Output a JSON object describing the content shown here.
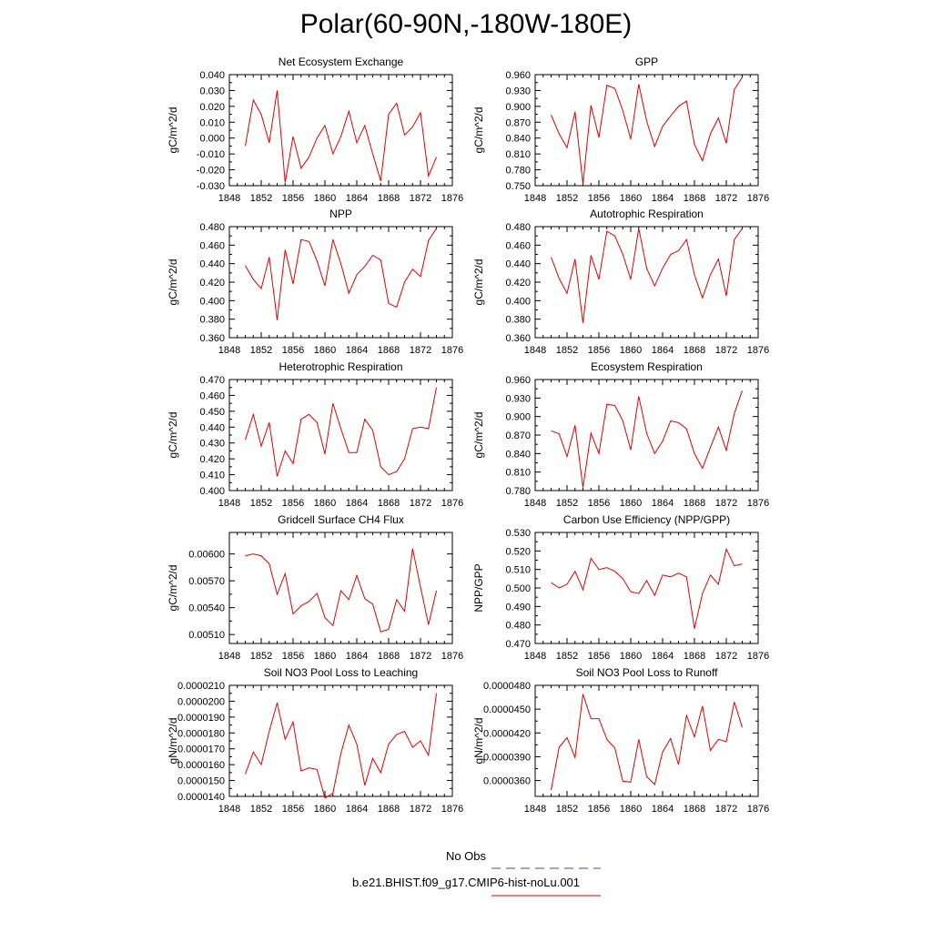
{
  "title": "Polar(60-90N,-180W-180E)",
  "legend": {
    "obs_label": "No Obs",
    "obs_color": "#4a4ad6",
    "case_label": "b.e21.BHIST.f09_g17.CMIP6-hist-noLu.001",
    "case_color": "#e00000"
  },
  "chart_data": [
    {
      "type": "line",
      "title": "Net Ecosystem Exchange",
      "ylabel": "gC/m^2/d",
      "xlim": [
        1848,
        1876
      ],
      "xticks": [
        "1848",
        "1852",
        "1856",
        "1860",
        "1864",
        "1868",
        "1872",
        "1876"
      ],
      "ylim": [
        -0.03,
        0.04
      ],
      "yticks": [
        "0.040",
        "0.030",
        "0.020",
        "0.010",
        "0.000",
        "-0.010",
        "-0.020",
        "-0.030"
      ],
      "ytick_values": [
        0.04,
        0.03,
        0.02,
        0.01,
        0.0,
        -0.01,
        -0.02,
        -0.03
      ],
      "x": [
        1850,
        1851,
        1852,
        1853,
        1854,
        1855,
        1856,
        1857,
        1858,
        1859,
        1860,
        1861,
        1862,
        1863,
        1864,
        1865,
        1866,
        1867,
        1868,
        1869,
        1870,
        1871,
        1872,
        1873,
        1874
      ],
      "values": [
        -0.005,
        0.024,
        0.015,
        -0.003,
        0.03,
        -0.028,
        0.001,
        -0.019,
        -0.012,
        0.0,
        0.008,
        -0.01,
        0.001,
        0.017,
        -0.003,
        0.008,
        -0.01,
        -0.027,
        0.015,
        0.022,
        0.002,
        0.007,
        0.016,
        -0.024,
        -0.012
      ]
    },
    {
      "type": "line",
      "title": "GPP",
      "ylabel": "gC/m^2/d",
      "xlim": [
        1848,
        1876
      ],
      "xticks": [
        "1848",
        "1852",
        "1856",
        "1860",
        "1864",
        "1868",
        "1872",
        "1876"
      ],
      "ylim": [
        0.75,
        0.96
      ],
      "yticks": [
        "0.960",
        "0.930",
        "0.900",
        "0.870",
        "0.840",
        "0.810",
        "0.780",
        "0.750"
      ],
      "ytick_values": [
        0.96,
        0.93,
        0.9,
        0.87,
        0.84,
        0.81,
        0.78,
        0.75
      ],
      "x": [
        1850,
        1851,
        1852,
        1853,
        1854,
        1855,
        1856,
        1857,
        1858,
        1859,
        1860,
        1861,
        1862,
        1863,
        1864,
        1865,
        1866,
        1867,
        1868,
        1869,
        1870,
        1871,
        1872,
        1873,
        1874
      ],
      "values": [
        0.884,
        0.848,
        0.822,
        0.89,
        0.753,
        0.902,
        0.841,
        0.94,
        0.934,
        0.892,
        0.838,
        0.942,
        0.872,
        0.824,
        0.862,
        0.882,
        0.9,
        0.91,
        0.828,
        0.797,
        0.848,
        0.878,
        0.83,
        0.932,
        0.955
      ]
    },
    {
      "type": "line",
      "title": "NPP",
      "ylabel": "gC/m^2/d",
      "xlim": [
        1848,
        1876
      ],
      "xticks": [
        "1848",
        "1852",
        "1856",
        "1860",
        "1864",
        "1868",
        "1872",
        "1876"
      ],
      "ylim": [
        0.36,
        0.48
      ],
      "yticks": [
        "0.480",
        "0.460",
        "0.440",
        "0.420",
        "0.400",
        "0.380",
        "0.360"
      ],
      "ytick_values": [
        0.48,
        0.46,
        0.44,
        0.42,
        0.4,
        0.38,
        0.36
      ],
      "x": [
        1850,
        1851,
        1852,
        1853,
        1854,
        1855,
        1856,
        1857,
        1858,
        1859,
        1860,
        1861,
        1862,
        1863,
        1864,
        1865,
        1866,
        1867,
        1868,
        1869,
        1870,
        1871,
        1872,
        1873,
        1874
      ],
      "values": [
        0.438,
        0.423,
        0.413,
        0.447,
        0.379,
        0.455,
        0.418,
        0.466,
        0.464,
        0.443,
        0.416,
        0.466,
        0.44,
        0.408,
        0.428,
        0.437,
        0.449,
        0.444,
        0.397,
        0.393,
        0.42,
        0.434,
        0.426,
        0.465,
        0.478
      ]
    },
    {
      "type": "line",
      "title": "Autotrophic Respiration",
      "ylabel": "gC/m^2/d",
      "xlim": [
        1848,
        1876
      ],
      "xticks": [
        "1848",
        "1852",
        "1856",
        "1860",
        "1864",
        "1868",
        "1872",
        "1876"
      ],
      "ylim": [
        0.36,
        0.48
      ],
      "yticks": [
        "0.480",
        "0.460",
        "0.440",
        "0.420",
        "0.400",
        "0.380",
        "0.360"
      ],
      "ytick_values": [
        0.48,
        0.46,
        0.44,
        0.42,
        0.4,
        0.38,
        0.36
      ],
      "x": [
        1850,
        1851,
        1852,
        1853,
        1854,
        1855,
        1856,
        1857,
        1858,
        1859,
        1860,
        1861,
        1862,
        1863,
        1864,
        1865,
        1866,
        1867,
        1868,
        1869,
        1870,
        1871,
        1872,
        1873,
        1874
      ],
      "values": [
        0.447,
        0.424,
        0.408,
        0.445,
        0.376,
        0.449,
        0.423,
        0.475,
        0.47,
        0.45,
        0.423,
        0.478,
        0.435,
        0.416,
        0.435,
        0.45,
        0.454,
        0.466,
        0.428,
        0.403,
        0.428,
        0.445,
        0.405,
        0.466,
        0.478
      ]
    },
    {
      "type": "line",
      "title": "Heterotrophic Respiration",
      "ylabel": "gC/m^2/d",
      "xlim": [
        1848,
        1876
      ],
      "xticks": [
        "1848",
        "1852",
        "1856",
        "1860",
        "1864",
        "1868",
        "1872",
        "1876"
      ],
      "ylim": [
        0.4,
        0.47
      ],
      "yticks": [
        "0.470",
        "0.460",
        "0.450",
        "0.440",
        "0.430",
        "0.420",
        "0.410",
        "0.400"
      ],
      "ytick_values": [
        0.47,
        0.46,
        0.45,
        0.44,
        0.43,
        0.42,
        0.41,
        0.4
      ],
      "x": [
        1850,
        1851,
        1852,
        1853,
        1854,
        1855,
        1856,
        1857,
        1858,
        1859,
        1860,
        1861,
        1862,
        1863,
        1864,
        1865,
        1866,
        1867,
        1868,
        1869,
        1870,
        1871,
        1872,
        1873,
        1874
      ],
      "values": [
        0.432,
        0.448,
        0.428,
        0.443,
        0.409,
        0.425,
        0.417,
        0.445,
        0.448,
        0.443,
        0.423,
        0.455,
        0.439,
        0.424,
        0.424,
        0.445,
        0.438,
        0.415,
        0.41,
        0.412,
        0.42,
        0.439,
        0.44,
        0.439,
        0.465
      ]
    },
    {
      "type": "line",
      "title": "Ecosystem Respiration",
      "ylabel": "gC/m^2/d",
      "xlim": [
        1848,
        1876
      ],
      "xticks": [
        "1848",
        "1852",
        "1856",
        "1860",
        "1864",
        "1868",
        "1872",
        "1876"
      ],
      "ylim": [
        0.78,
        0.96
      ],
      "yticks": [
        "0.960",
        "0.930",
        "0.900",
        "0.870",
        "0.840",
        "0.810",
        "0.780"
      ],
      "ytick_values": [
        0.96,
        0.93,
        0.9,
        0.87,
        0.84,
        0.81,
        0.78
      ],
      "x": [
        1850,
        1851,
        1852,
        1853,
        1854,
        1855,
        1856,
        1857,
        1858,
        1859,
        1860,
        1861,
        1862,
        1863,
        1864,
        1865,
        1866,
        1867,
        1868,
        1869,
        1870,
        1871,
        1872,
        1873,
        1874
      ],
      "values": [
        0.877,
        0.872,
        0.835,
        0.886,
        0.785,
        0.873,
        0.84,
        0.92,
        0.918,
        0.893,
        0.846,
        0.933,
        0.873,
        0.84,
        0.86,
        0.893,
        0.89,
        0.88,
        0.84,
        0.816,
        0.85,
        0.883,
        0.845,
        0.905,
        0.942
      ]
    },
    {
      "type": "line",
      "title": "Gridcell Surface CH4 Flux",
      "ylabel": "gC/m^2/d",
      "xlim": [
        1848,
        1876
      ],
      "xticks": [
        "1848",
        "1852",
        "1856",
        "1860",
        "1864",
        "1868",
        "1872",
        "1876"
      ],
      "ylim": [
        0.005,
        0.00624
      ],
      "yticks": [
        "0.00600",
        "0.00570",
        "0.00540",
        "0.00510"
      ],
      "ytick_values": [
        0.006,
        0.0057,
        0.0054,
        0.0051
      ],
      "x": [
        1850,
        1851,
        1852,
        1853,
        1854,
        1855,
        1856,
        1857,
        1858,
        1859,
        1860,
        1861,
        1862,
        1863,
        1864,
        1865,
        1866,
        1867,
        1868,
        1869,
        1870,
        1871,
        1872,
        1873,
        1874
      ],
      "values": [
        0.00598,
        0.006,
        0.00598,
        0.00589,
        0.00555,
        0.00578,
        0.00533,
        0.00542,
        0.00547,
        0.00556,
        0.00529,
        0.0052,
        0.00559,
        0.00549,
        0.00576,
        0.0055,
        0.00544,
        0.00513,
        0.00516,
        0.00549,
        0.00536,
        0.00606,
        0.00563,
        0.00521,
        0.00559
      ]
    },
    {
      "type": "line",
      "title": "Carbon Use Efficiency (NPP/GPP)",
      "ylabel": "NPP/GPP",
      "xlim": [
        1848,
        1876
      ],
      "xticks": [
        "1848",
        "1852",
        "1856",
        "1860",
        "1864",
        "1868",
        "1872",
        "1876"
      ],
      "ylim": [
        0.47,
        0.53
      ],
      "yticks": [
        "0.530",
        "0.520",
        "0.510",
        "0.500",
        "0.490",
        "0.480",
        "0.470"
      ],
      "ytick_values": [
        0.53,
        0.52,
        0.51,
        0.5,
        0.49,
        0.48,
        0.47
      ],
      "x": [
        1850,
        1851,
        1852,
        1853,
        1854,
        1855,
        1856,
        1857,
        1858,
        1859,
        1860,
        1861,
        1862,
        1863,
        1864,
        1865,
        1866,
        1867,
        1868,
        1869,
        1870,
        1871,
        1872,
        1873,
        1874
      ],
      "values": [
        0.503,
        0.5,
        0.502,
        0.509,
        0.499,
        0.516,
        0.51,
        0.511,
        0.509,
        0.505,
        0.498,
        0.497,
        0.504,
        0.496,
        0.507,
        0.506,
        0.508,
        0.506,
        0.478,
        0.497,
        0.507,
        0.502,
        0.521,
        0.512,
        0.513
      ]
    },
    {
      "type": "line",
      "title": "Soil NO3 Pool Loss to Leaching",
      "ylabel": "gN/m^2/d",
      "xlim": [
        1848,
        1876
      ],
      "xticks": [
        "1848",
        "1852",
        "1856",
        "1860",
        "1864",
        "1868",
        "1872",
        "1876"
      ],
      "ylim": [
        1.4e-05,
        2.1e-05
      ],
      "yticks": [
        "0.0000210",
        "0.0000200",
        "0.0000190",
        "0.0000180",
        "0.0000170",
        "0.0000160",
        "0.0000150",
        "0.0000140"
      ],
      "ytick_values": [
        2.1e-05,
        2e-05,
        1.9e-05,
        1.8e-05,
        1.7e-05,
        1.6e-05,
        1.5e-05,
        1.4e-05
      ],
      "x": [
        1850,
        1851,
        1852,
        1853,
        1854,
        1855,
        1856,
        1857,
        1858,
        1859,
        1860,
        1861,
        1862,
        1863,
        1864,
        1865,
        1866,
        1867,
        1868,
        1869,
        1870,
        1871,
        1872,
        1873,
        1874
      ],
      "values": [
        1.54e-05,
        1.68e-05,
        1.6e-05,
        1.81e-05,
        1.99e-05,
        1.76e-05,
        1.87e-05,
        1.56e-05,
        1.58e-05,
        1.57e-05,
        1.39e-05,
        1.42e-05,
        1.67e-05,
        1.85e-05,
        1.73e-05,
        1.47e-05,
        1.64e-05,
        1.55e-05,
        1.73e-05,
        1.79e-05,
        1.81e-05,
        1.71e-05,
        1.75e-05,
        1.66e-05,
        2.05e-05
      ]
    },
    {
      "type": "line",
      "title": "Soil NO3 Pool Loss to Runoff",
      "ylabel": "gN/m^2/d",
      "xlim": [
        1848,
        1876
      ],
      "xticks": [
        "1848",
        "1852",
        "1856",
        "1860",
        "1864",
        "1868",
        "1872",
        "1876"
      ],
      "ylim": [
        3.4e-05,
        4.8e-05
      ],
      "yticks": [
        "0.0000480",
        "0.0000450",
        "0.0000420",
        "0.0000390",
        "0.0000360"
      ],
      "ytick_values": [
        4.8e-05,
        4.5e-05,
        4.2e-05,
        3.9e-05,
        3.6e-05
      ],
      "x": [
        1850,
        1851,
        1852,
        1853,
        1854,
        1855,
        1856,
        1857,
        1858,
        1859,
        1860,
        1861,
        1862,
        1863,
        1864,
        1865,
        1866,
        1867,
        1868,
        1869,
        1870,
        1871,
        1872,
        1873,
        1874
      ],
      "values": [
        3.48e-05,
        4.02e-05,
        4.14e-05,
        3.89e-05,
        4.69e-05,
        4.38e-05,
        4.38e-05,
        4.12e-05,
        4.01e-05,
        3.59e-05,
        3.58e-05,
        4.12e-05,
        3.65e-05,
        3.55e-05,
        3.96e-05,
        4.13e-05,
        3.8e-05,
        4.42e-05,
        4.15e-05,
        4.54e-05,
        3.98e-05,
        4.12e-05,
        4.09e-05,
        4.59e-05,
        4.27e-05
      ]
    }
  ]
}
